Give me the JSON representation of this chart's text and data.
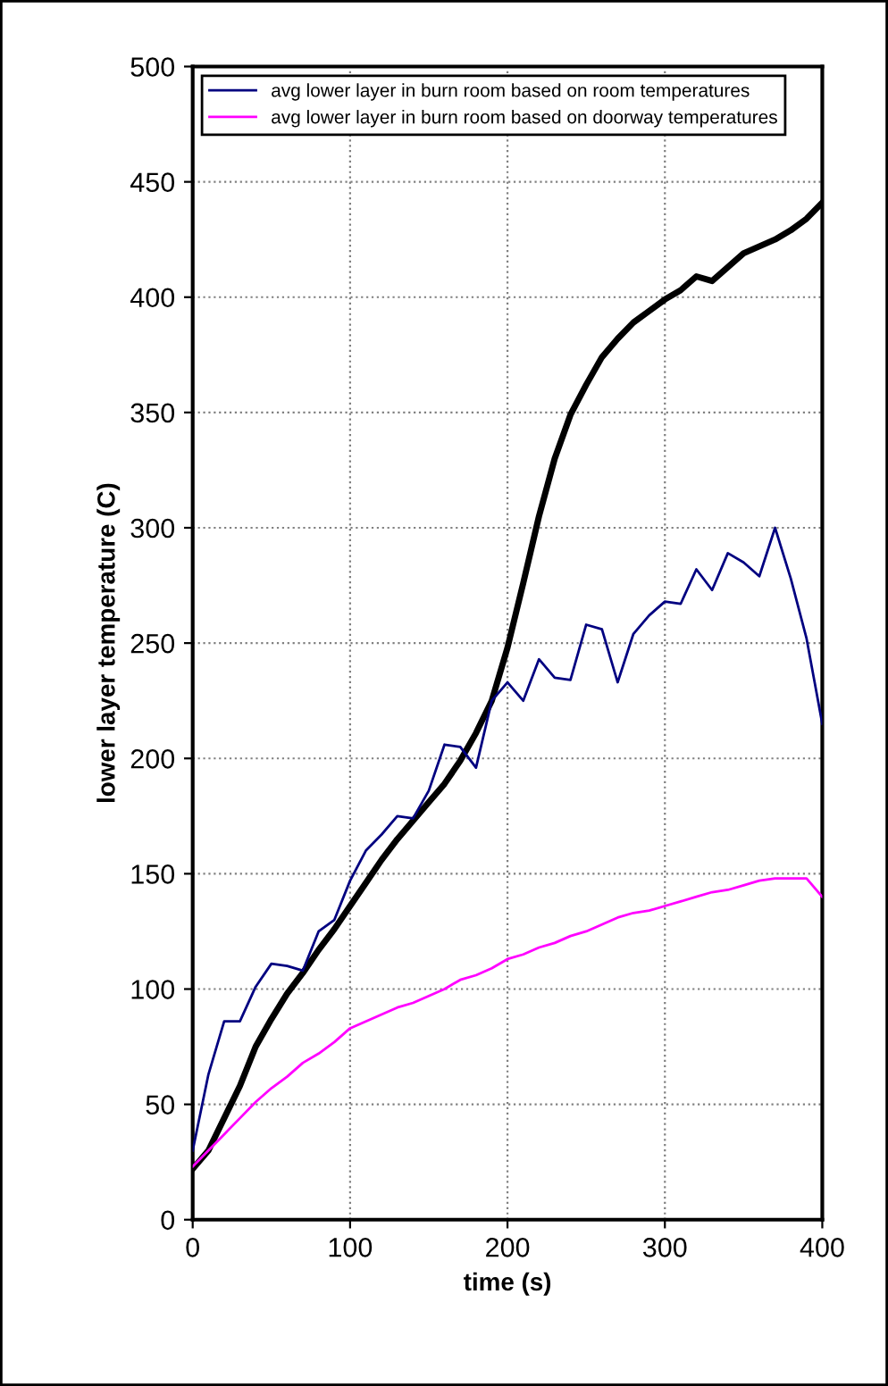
{
  "chart_data": {
    "type": "line",
    "xlabel": "time (s)",
    "ylabel": "lower layer temperature (C)",
    "x": [
      0,
      10,
      20,
      30,
      40,
      50,
      60,
      70,
      80,
      90,
      100,
      110,
      120,
      130,
      140,
      150,
      160,
      170,
      180,
      190,
      200,
      210,
      220,
      230,
      240,
      250,
      260,
      270,
      280,
      290,
      300,
      310,
      320,
      330,
      340,
      350,
      360,
      370,
      380,
      390,
      400
    ],
    "series": [
      {
        "name": "avg lower layer in burn room based on room temperatures",
        "color": "#000080",
        "values": [
          30,
          63,
          86,
          86,
          101,
          111,
          110,
          108,
          125,
          130,
          147,
          160,
          167,
          175,
          174,
          186,
          206,
          205,
          196,
          225,
          233,
          225,
          243,
          235,
          234,
          258,
          256,
          233,
          254,
          262,
          268,
          267,
          282,
          273,
          289,
          285,
          279,
          300,
          278,
          252,
          215
        ]
      },
      {
        "name": "avg lower layer in burn room based on doorway temperatures",
        "color": "#ff00ff",
        "values": [
          23,
          30,
          37,
          44,
          51,
          57,
          62,
          68,
          72,
          77,
          83,
          86,
          89,
          92,
          94,
          97,
          100,
          104,
          106,
          109,
          113,
          115,
          118,
          120,
          123,
          125,
          128,
          131,
          133,
          134,
          136,
          138,
          140,
          142,
          143,
          145,
          147,
          148,
          148,
          148,
          140
        ]
      },
      {
        "color": "#000000",
        "values": [
          22,
          30,
          44,
          58,
          75,
          87,
          98,
          107,
          117,
          126,
          136,
          146,
          156,
          165,
          173,
          181,
          189,
          199,
          211,
          225,
          248,
          276,
          305,
          330,
          349,
          362,
          374,
          382,
          389,
          394,
          399,
          403,
          409,
          407,
          413,
          419,
          422,
          425,
          429,
          434,
          441
        ]
      }
    ],
    "xlim": [
      0,
      400
    ],
    "xticks": [
      0,
      100,
      200,
      300,
      400
    ],
    "ylim": [
      0,
      500
    ],
    "yticks": [
      0,
      50,
      100,
      150,
      200,
      250,
      300,
      350,
      400,
      450,
      500
    ],
    "grid": true,
    "legend": "top left"
  }
}
